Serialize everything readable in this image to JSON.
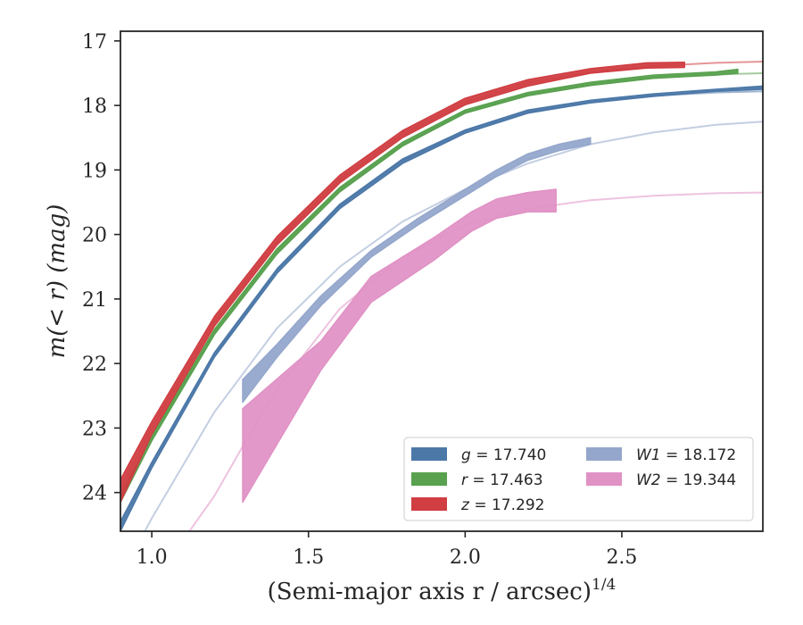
{
  "chart_data": {
    "type": "line",
    "title": "",
    "xlabel": "(Semi-major axis r / arcsec)",
    "xlabel_exponent": "1/4",
    "ylabel": "m(< r) (mag)",
    "xlim": [
      0.9,
      2.95
    ],
    "ylim": [
      24.6,
      16.85
    ],
    "y_inverted": true,
    "xticks": [
      1.0,
      1.5,
      2.0,
      2.5
    ],
    "xtick_labels": [
      "1.0",
      "1.5",
      "2.0",
      "2.5"
    ],
    "yticks": [
      17,
      18,
      19,
      20,
      21,
      22,
      23,
      24
    ],
    "ytick_labels": [
      "17",
      "18",
      "19",
      "20",
      "21",
      "22",
      "23",
      "24"
    ],
    "grid": false,
    "legend_position": "lower-right",
    "series": [
      {
        "name": "g = 17.740",
        "legend_var": "g",
        "legend_value": "17.740",
        "color": "#4c78a8",
        "model_x": [
          0.9,
          1.0,
          1.2,
          1.4,
          1.6,
          1.8,
          2.0,
          2.2,
          2.4,
          2.6,
          2.8,
          2.95
        ],
        "model_y": [
          24.45,
          23.55,
          21.85,
          20.55,
          19.55,
          18.85,
          18.4,
          18.1,
          17.95,
          17.85,
          17.8,
          17.78
        ],
        "data_x": [
          0.9,
          1.0,
          1.2,
          1.4,
          1.6,
          1.8,
          2.0,
          2.2,
          2.4,
          2.6,
          2.8,
          2.95
        ],
        "data_low": [
          24.45,
          23.53,
          21.83,
          20.53,
          19.53,
          18.83,
          18.38,
          18.07,
          17.92,
          17.82,
          17.75,
          17.7
        ],
        "data_high": [
          24.6,
          23.62,
          21.9,
          20.6,
          19.6,
          18.9,
          18.43,
          18.12,
          17.96,
          17.86,
          17.78,
          17.75
        ]
      },
      {
        "name": "r = 17.463",
        "legend_var": "r",
        "legend_value": "17.463",
        "color": "#59a14f",
        "model_x": [
          0.9,
          1.0,
          1.2,
          1.4,
          1.6,
          1.8,
          2.0,
          2.2,
          2.4,
          2.6,
          2.8,
          2.95
        ],
        "model_y": [
          24.05,
          23.15,
          21.5,
          20.25,
          19.3,
          18.6,
          18.1,
          17.83,
          17.67,
          17.57,
          17.52,
          17.5
        ],
        "data_x": [
          0.9,
          1.0,
          1.2,
          1.4,
          1.6,
          1.8,
          2.0,
          2.2,
          2.4,
          2.6,
          2.8,
          2.87
        ],
        "data_low": [
          24.02,
          23.12,
          21.47,
          20.22,
          19.27,
          18.57,
          18.07,
          17.8,
          17.64,
          17.53,
          17.48,
          17.44
        ],
        "data_high": [
          24.15,
          23.2,
          21.55,
          20.3,
          19.34,
          18.63,
          18.12,
          17.85,
          17.69,
          17.58,
          17.53,
          17.5
        ]
      },
      {
        "name": "z = 17.292",
        "legend_var": "z",
        "legend_value": "17.292",
        "color": "#d03e42",
        "model_x": [
          0.9,
          1.0,
          1.2,
          1.4,
          1.6,
          1.8,
          2.0,
          2.2,
          2.4,
          2.6,
          2.8,
          2.95
        ],
        "model_y": [
          23.95,
          23.0,
          21.35,
          20.1,
          19.15,
          18.45,
          17.95,
          17.65,
          17.48,
          17.39,
          17.34,
          17.32
        ],
        "data_x": [
          0.9,
          1.0,
          1.2,
          1.4,
          1.6,
          1.8,
          2.0,
          2.2,
          2.4,
          2.58,
          2.7
        ],
        "data_low": [
          23.8,
          22.9,
          21.27,
          20.03,
          19.08,
          18.39,
          17.89,
          17.6,
          17.43,
          17.34,
          17.33
        ],
        "data_high": [
          24.15,
          23.1,
          21.42,
          20.16,
          19.2,
          18.5,
          17.99,
          17.7,
          17.5,
          17.42,
          17.41
        ]
      },
      {
        "name": "W1 = 18.172",
        "legend_var": "W1",
        "legend_value": "18.172",
        "color": "#94a6cb",
        "model_x": [
          0.9,
          1.0,
          1.2,
          1.4,
          1.6,
          1.8,
          2.0,
          2.2,
          2.4,
          2.6,
          2.8,
          2.95
        ],
        "model_y": [
          25.3,
          24.4,
          22.75,
          21.45,
          20.5,
          19.8,
          19.3,
          18.9,
          18.6,
          18.42,
          18.3,
          18.25
        ],
        "data_x": [
          1.29,
          1.4,
          1.54,
          1.7,
          1.85,
          2.0,
          2.1,
          2.2,
          2.3,
          2.4
        ],
        "data_low": [
          22.25,
          21.7,
          20.95,
          20.25,
          19.75,
          19.3,
          19.0,
          18.75,
          18.6,
          18.5
        ],
        "data_high": [
          22.6,
          21.9,
          21.1,
          20.35,
          19.85,
          19.4,
          19.1,
          18.85,
          18.7,
          18.6
        ]
      },
      {
        "name": "W2 = 19.344",
        "legend_var": "W2",
        "legend_value": "19.344",
        "color": "#e092c5",
        "model_x": [
          1.12,
          1.2,
          1.3,
          1.4,
          1.6,
          1.8,
          2.0,
          2.2,
          2.4,
          2.6,
          2.8,
          2.95
        ],
        "model_y": [
          24.6,
          24.05,
          23.2,
          22.4,
          21.15,
          20.35,
          19.85,
          19.6,
          19.47,
          19.4,
          19.36,
          19.35
        ],
        "data_x": [
          1.29,
          1.54,
          1.7,
          1.9,
          2.02,
          2.1,
          2.2,
          2.29
        ],
        "data_low": [
          22.7,
          21.65,
          20.65,
          20.05,
          19.65,
          19.45,
          19.35,
          19.3
        ],
        "data_high": [
          24.15,
          22.1,
          21.05,
          20.4,
          19.95,
          19.75,
          19.65,
          19.65
        ]
      }
    ]
  }
}
